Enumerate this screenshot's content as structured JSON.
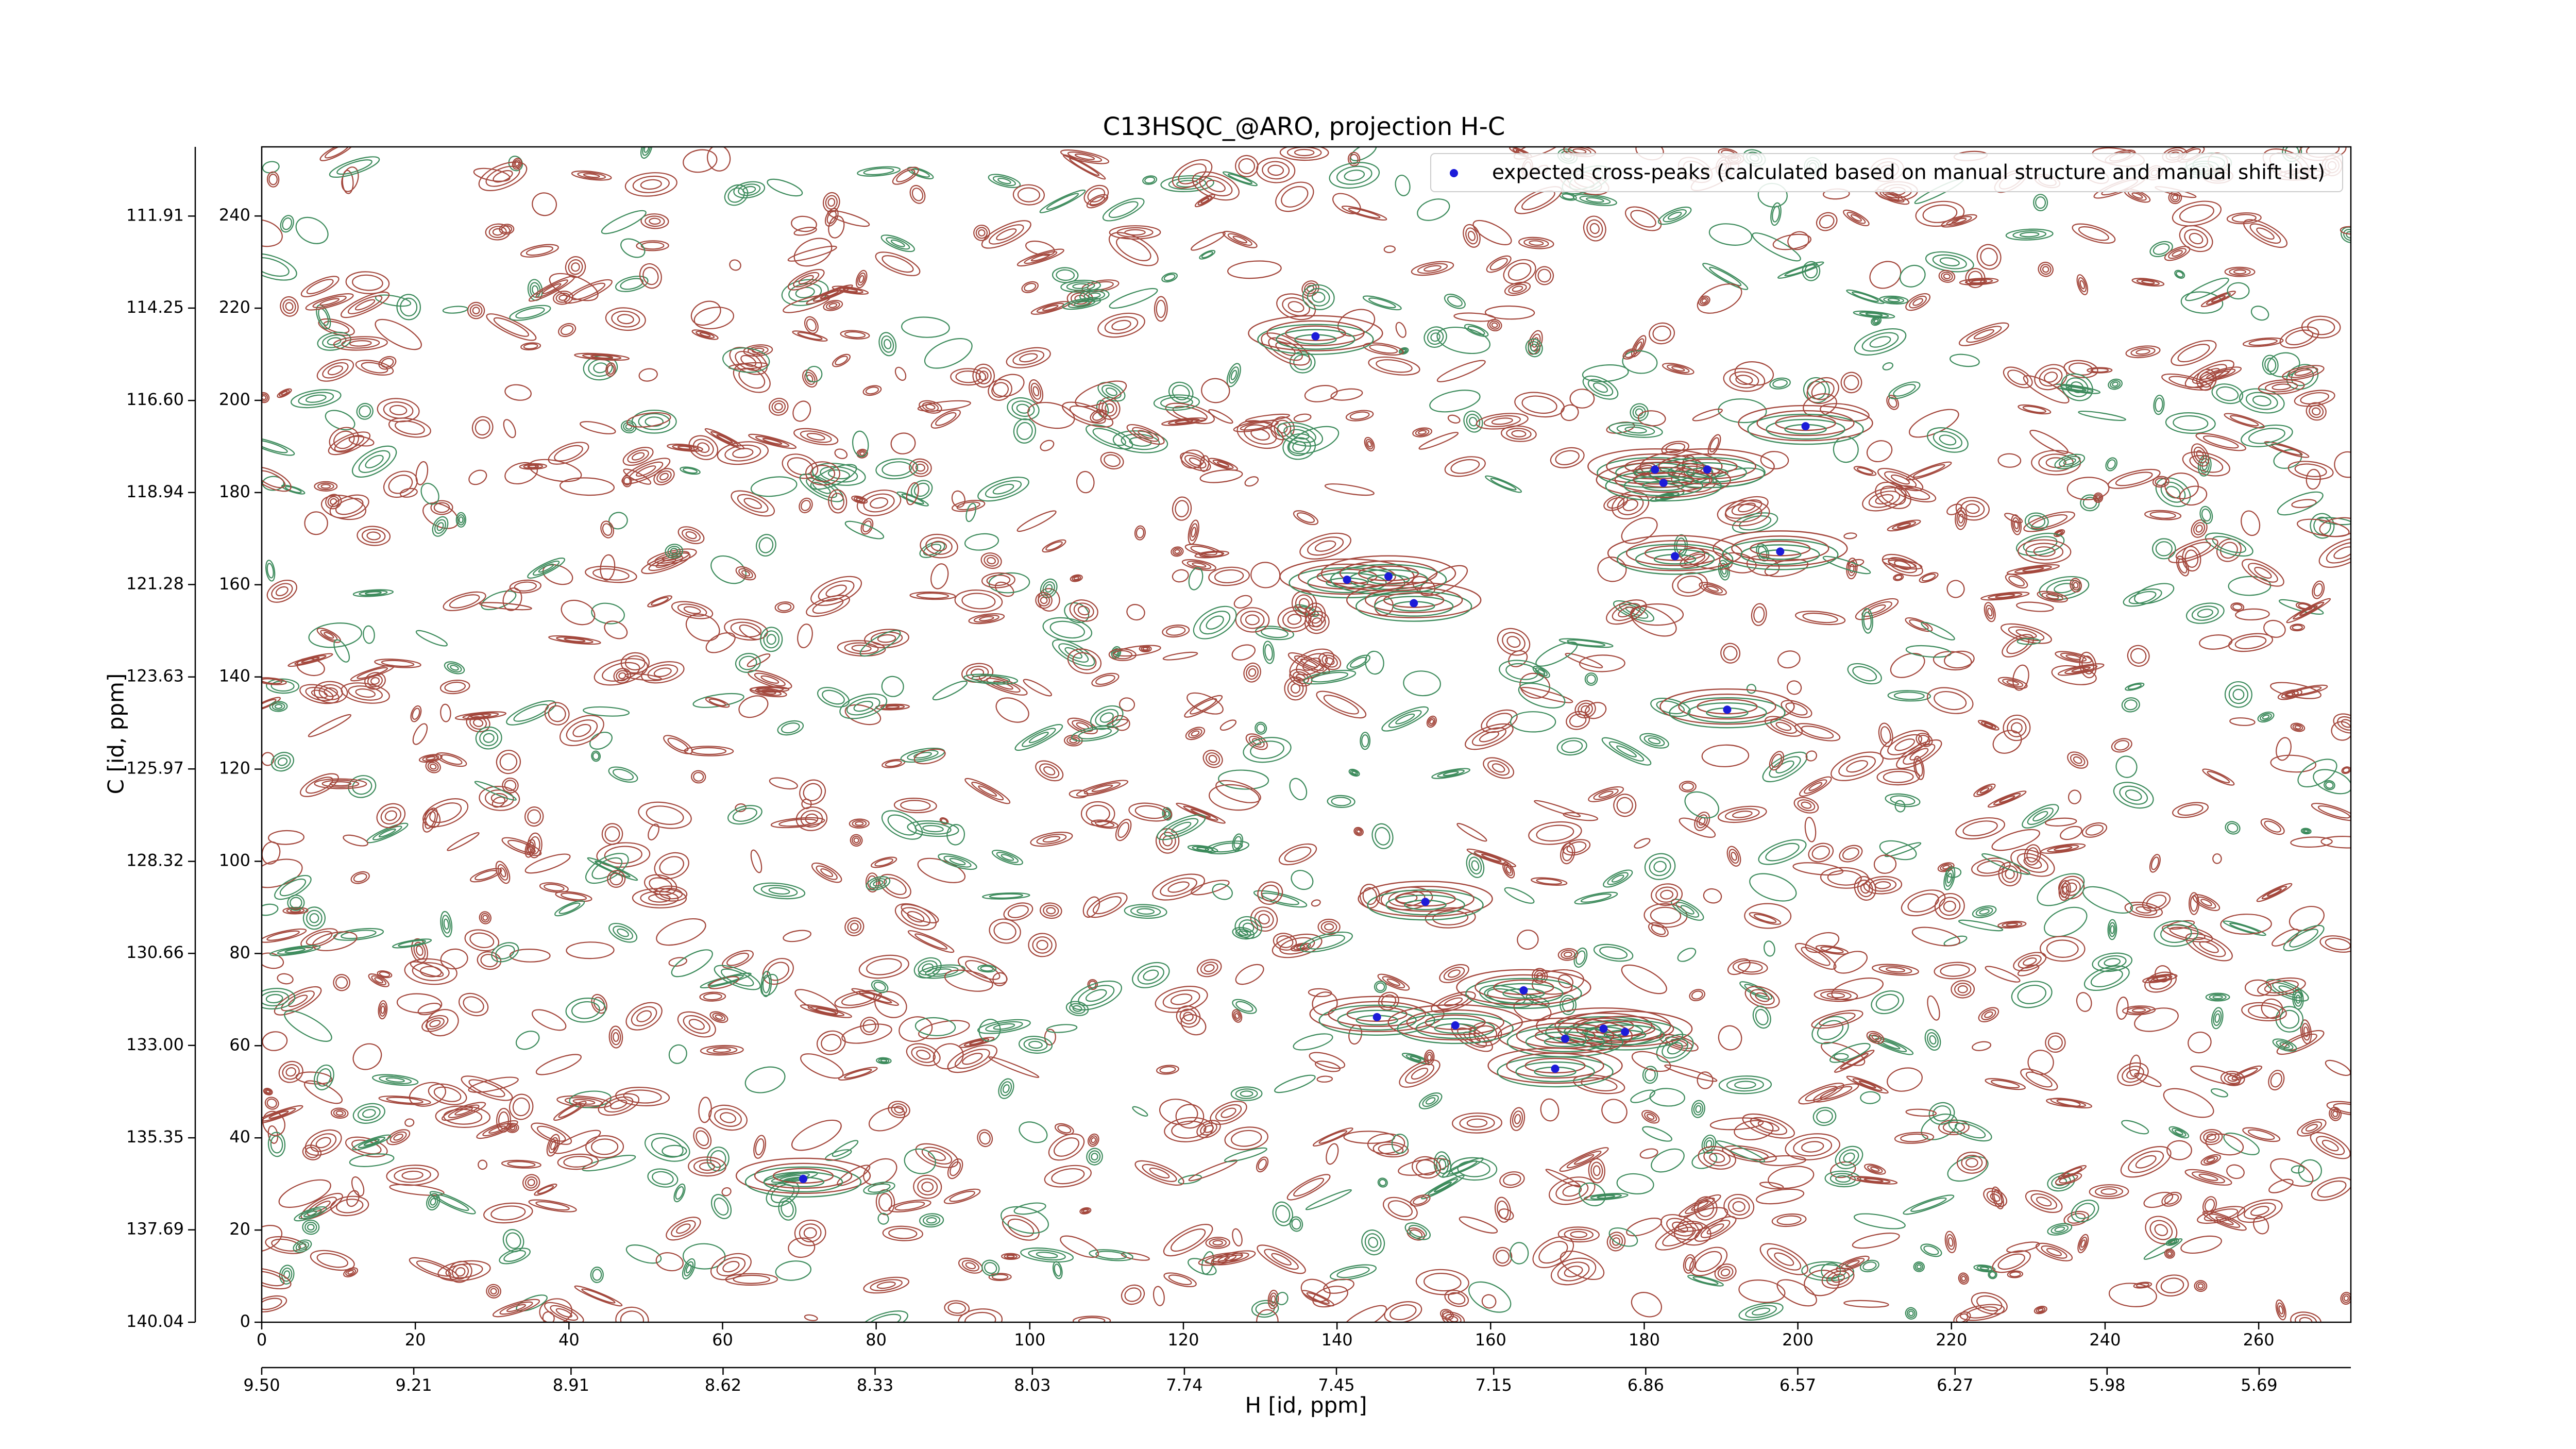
{
  "chart_data": {
    "type": "scatter",
    "title": "C13HSQC_@ARO, projection H-C",
    "xlabel": "H [id, ppm]",
    "ylabel": "C [id, ppm]",
    "xlim": [
      0,
      272
    ],
    "ylim": [
      0,
      255
    ],
    "xticks": [
      0,
      20,
      40,
      60,
      80,
      100,
      120,
      140,
      160,
      180,
      200,
      220,
      240,
      260
    ],
    "yticks": [
      0,
      20,
      40,
      60,
      80,
      100,
      120,
      140,
      160,
      180,
      200,
      220,
      240
    ],
    "x2lim": [
      9.5,
      5.515
    ],
    "x2ticks": [
      {
        "value": 9.5,
        "label": "9.50"
      },
      9.21,
      8.91,
      8.62,
      8.33,
      8.03,
      7.74,
      7.45,
      7.15,
      6.86,
      6.57,
      6.27,
      5.98,
      5.69
    ],
    "y2lim": [
      140.04,
      110.15
    ],
    "y2ticks": [
      140.04,
      137.69,
      135.35,
      {
        "value": 133,
        "label": "133.00"
      },
      130.66,
      128.32,
      125.97,
      123.63,
      121.28,
      118.94,
      {
        "value": 116.6,
        "label": "116.60"
      },
      114.25,
      111.91
    ],
    "legend": "upper right",
    "contour_colors": [
      "#a3473c",
      "#3d8b5c"
    ],
    "series": [
      {
        "name": "expected cross-peaks (calculated based on manual structure and manual shift list)",
        "color": "#1c1cd9",
        "x": [
          137.2,
          201.0,
          181.4,
          188.2,
          182.5,
          184.0,
          197.7,
          141.3,
          146.7,
          150.0,
          190.8,
          151.5,
          164.3,
          145.2,
          155.4,
          174.7,
          177.5,
          169.7,
          168.4,
          70.5
        ],
        "y": [
          213.9,
          194.4,
          185.0,
          185.0,
          182.1,
          166.2,
          167.2,
          161.1,
          161.8,
          156.0,
          132.9,
          91.2,
          72.0,
          66.2,
          64.4,
          63.7,
          63.0,
          61.5,
          55.0,
          31.1
        ]
      }
    ]
  }
}
